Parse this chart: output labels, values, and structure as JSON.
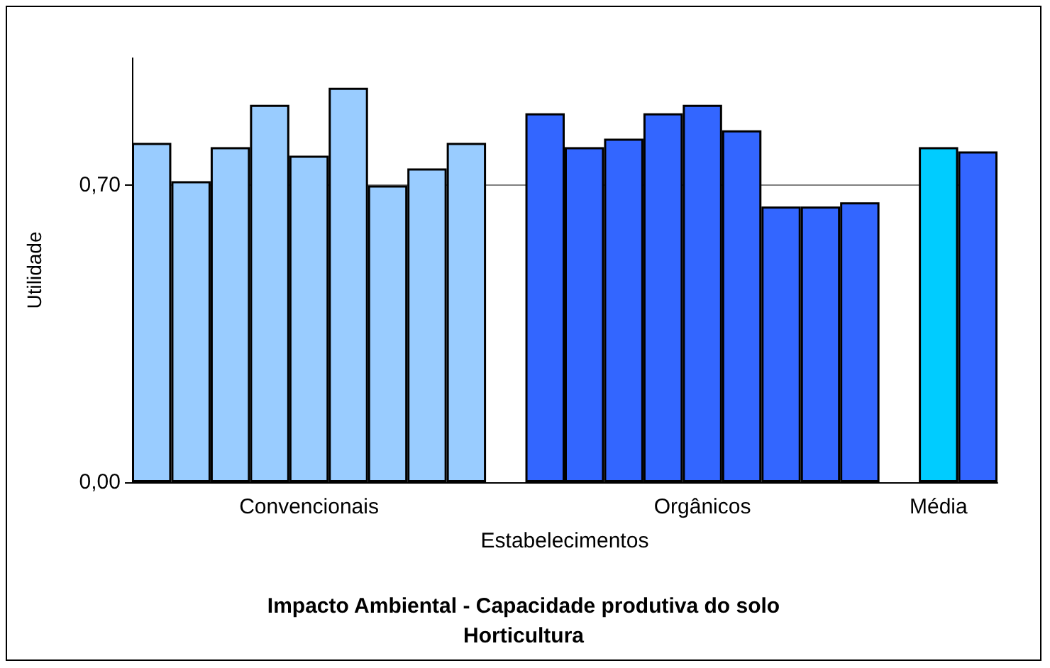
{
  "chart_data": {
    "type": "bar",
    "title": "Impacto Ambiental - Capacidade produtiva do solo",
    "subtitle": "Horticultura",
    "xlabel": "Estabelecimentos",
    "ylabel": "Utilidade",
    "categories": [
      null,
      null,
      null,
      null,
      "Convencionais",
      null,
      null,
      null,
      null,
      null,
      null,
      null,
      null,
      null,
      "Orgânicos",
      null,
      null,
      null,
      null,
      null,
      "Média",
      null
    ],
    "values": [
      0.8,
      0.71,
      0.79,
      0.89,
      0.77,
      0.93,
      0.7,
      0.74,
      0.8,
      null,
      0.87,
      0.79,
      0.81,
      0.87,
      0.89,
      0.83,
      0.65,
      0.65,
      0.66,
      null,
      0.79,
      0.78
    ],
    "colors": [
      "#99ccff",
      "#99ccff",
      "#99ccff",
      "#99ccff",
      "#99ccff",
      "#99ccff",
      "#99ccff",
      "#99ccff",
      "#99ccff",
      null,
      "#3366ff",
      "#3366ff",
      "#3366ff",
      "#3366ff",
      "#3366ff",
      "#3366ff",
      "#3366ff",
      "#3366ff",
      "#3366ff",
      null,
      "#00ccff",
      "#3366ff"
    ],
    "ylim": [
      0,
      1.0
    ],
    "yticks": [
      {
        "value": 0,
        "label": "0,00"
      },
      {
        "value": 0.7,
        "label": "0,70"
      }
    ],
    "grid": "y"
  }
}
